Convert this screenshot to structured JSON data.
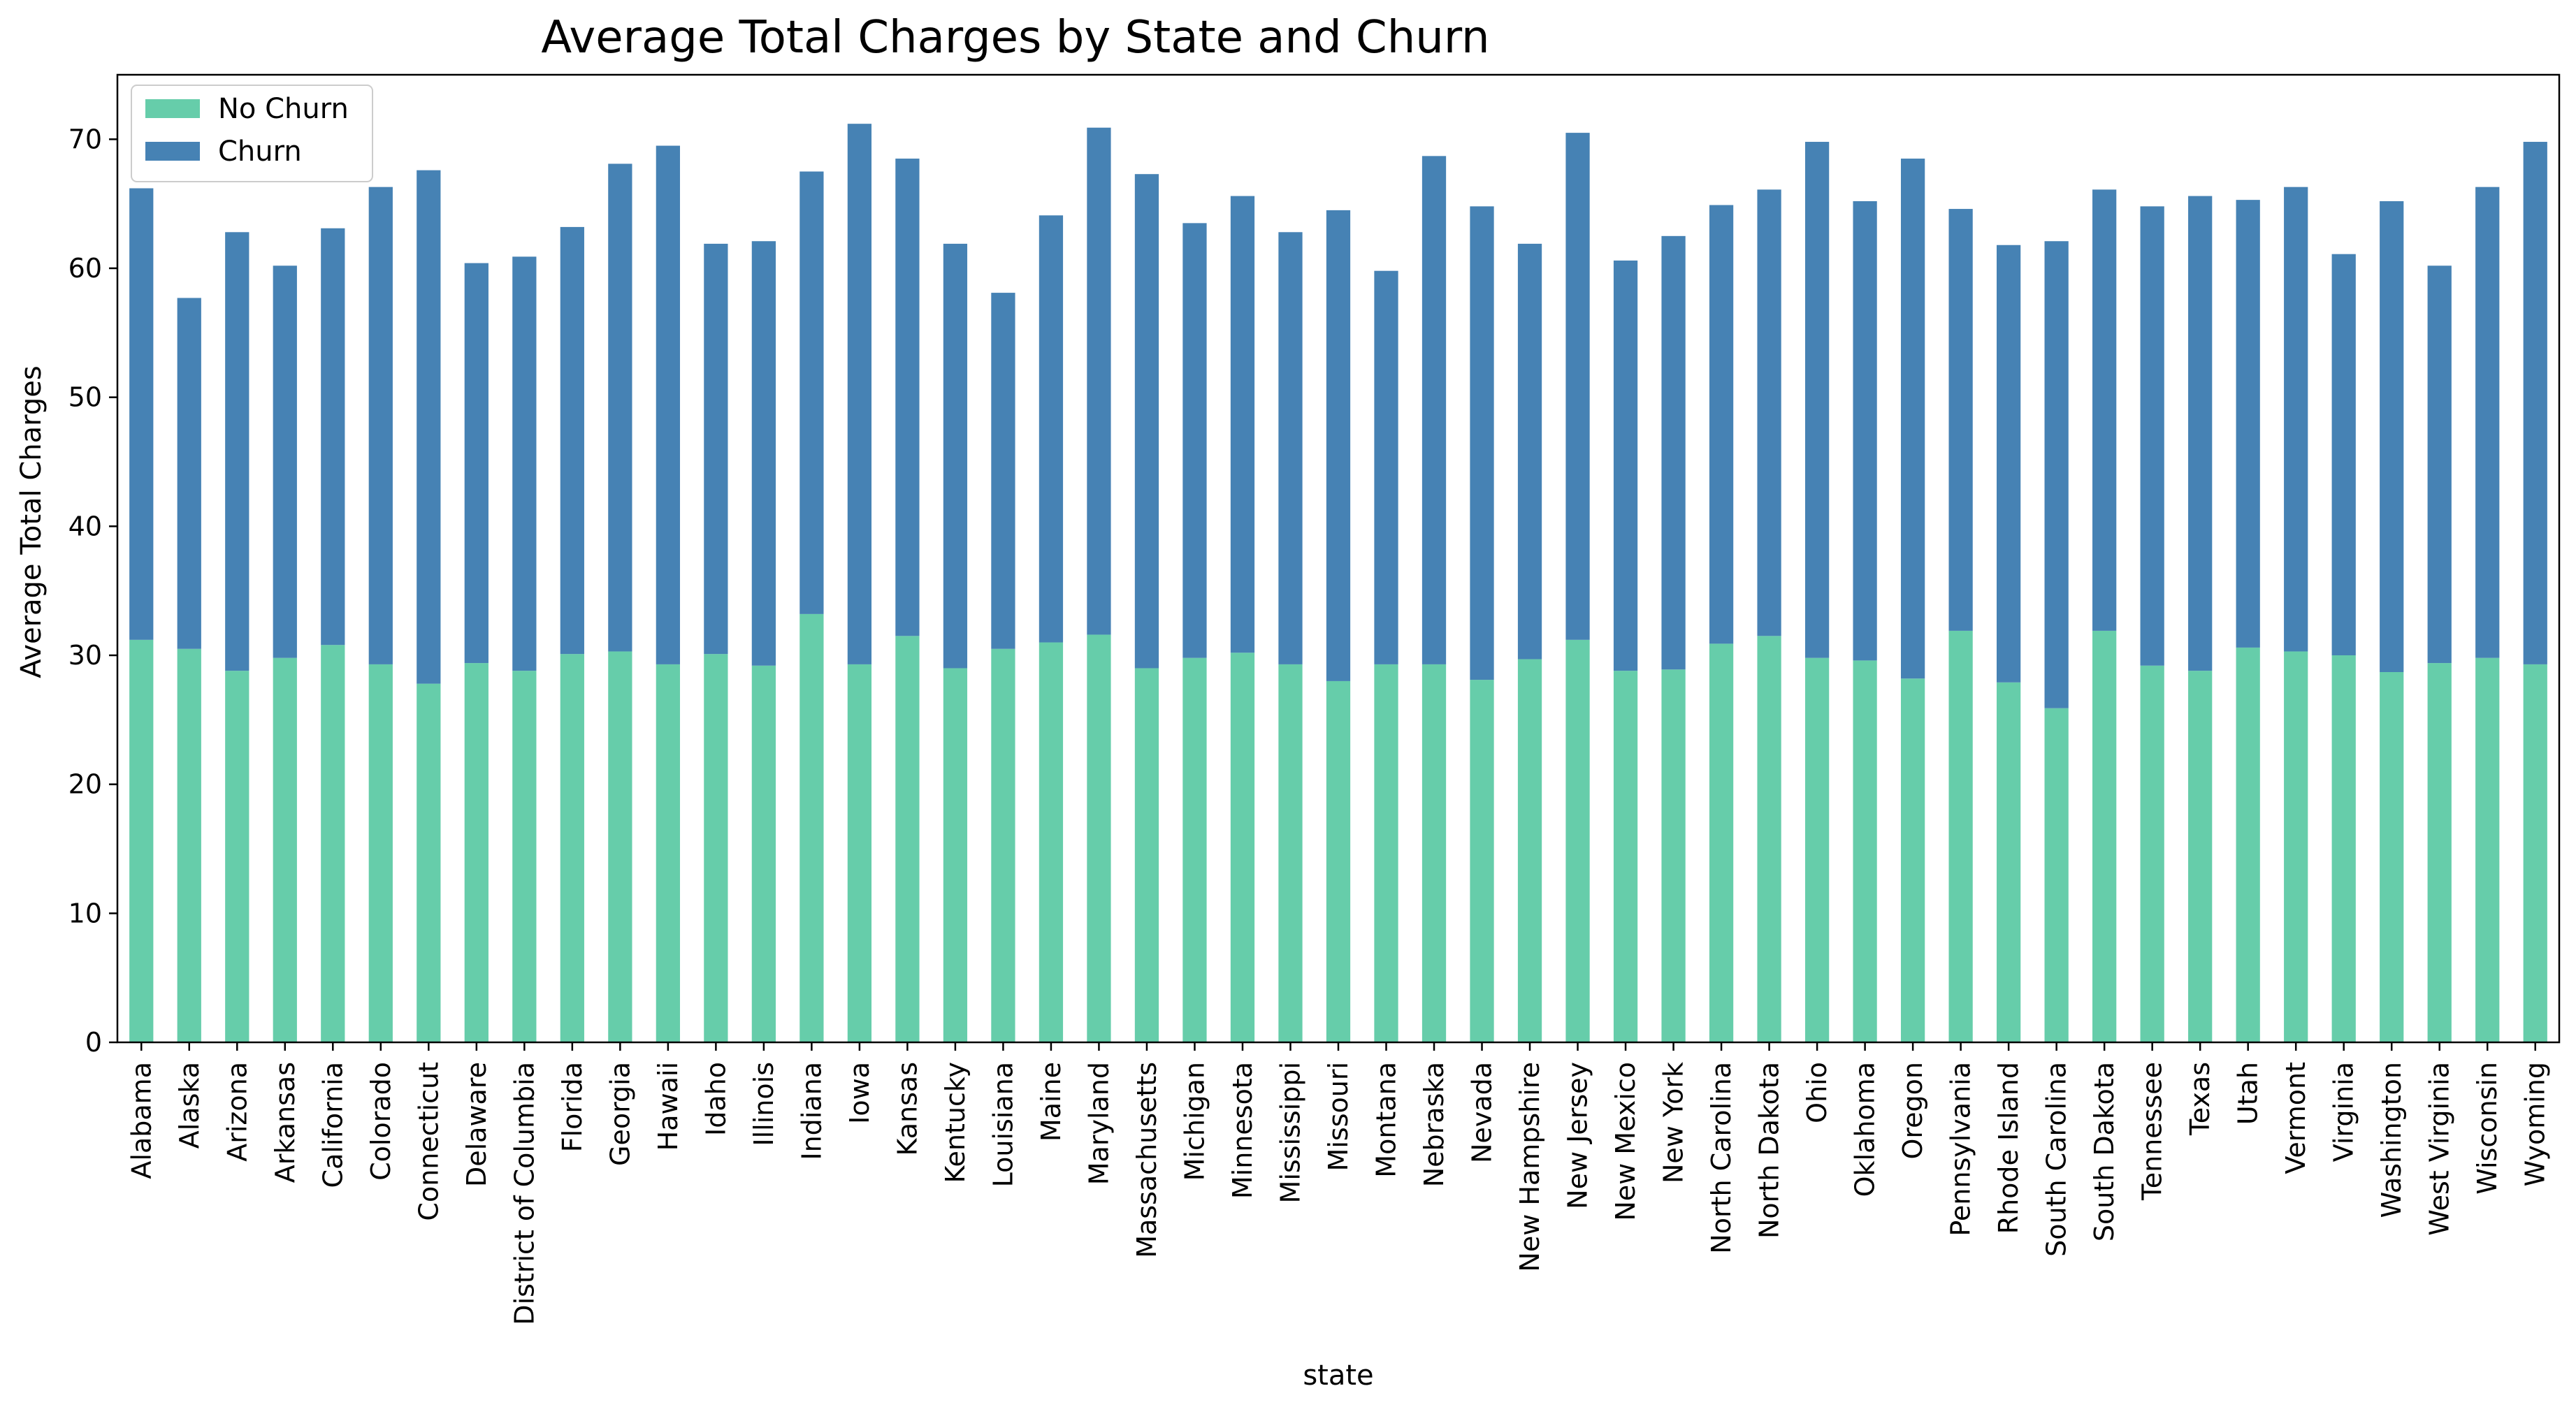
{
  "chart_data": {
    "type": "bar",
    "stacked": true,
    "title": "Average Total Charges by State and Churn",
    "xlabel": "state",
    "ylabel": "Average Total Charges",
    "ylim": [
      0,
      75
    ],
    "yticks": [
      0,
      10,
      20,
      30,
      40,
      50,
      60,
      70
    ],
    "grid": false,
    "legend_position": "top-left",
    "colors": {
      "No Churn": "#66cdaa",
      "Churn": "#4682b4"
    },
    "categories": [
      "Alabama",
      "Alaska",
      "Arizona",
      "Arkansas",
      "California",
      "Colorado",
      "Connecticut",
      "Delaware",
      "District of Columbia",
      "Florida",
      "Georgia",
      "Hawaii",
      "Idaho",
      "Illinois",
      "Indiana",
      "Iowa",
      "Kansas",
      "Kentucky",
      "Louisiana",
      "Maine",
      "Maryland",
      "Massachusetts",
      "Michigan",
      "Minnesota",
      "Mississippi",
      "Missouri",
      "Montana",
      "Nebraska",
      "Nevada",
      "New Hampshire",
      "New Jersey",
      "New Mexico",
      "New York",
      "North Carolina",
      "North Dakota",
      "Ohio",
      "Oklahoma",
      "Oregon",
      "Pennsylvania",
      "Rhode Island",
      "South Carolina",
      "South Dakota",
      "Tennessee",
      "Texas",
      "Utah",
      "Vermont",
      "Virginia",
      "Washington",
      "West Virginia",
      "Wisconsin",
      "Wyoming"
    ],
    "series": [
      {
        "name": "No Churn",
        "values": [
          31.2,
          30.5,
          28.8,
          29.8,
          30.8,
          29.3,
          27.8,
          29.4,
          28.8,
          30.1,
          30.3,
          29.3,
          30.1,
          29.2,
          33.2,
          29.3,
          31.5,
          29.0,
          30.5,
          31.0,
          31.6,
          29.0,
          29.8,
          30.2,
          29.3,
          28.0,
          29.3,
          29.3,
          28.1,
          29.7,
          31.2,
          28.8,
          28.9,
          30.9,
          31.5,
          29.8,
          29.6,
          28.2,
          31.9,
          27.9,
          25.9,
          31.9,
          29.2,
          28.8,
          30.6,
          30.3,
          30.0,
          28.7,
          29.4,
          29.8,
          29.3
        ]
      },
      {
        "name": "Churn",
        "values": [
          35.0,
          27.2,
          34.0,
          30.4,
          32.3,
          37.0,
          39.8,
          31.0,
          32.1,
          33.1,
          37.8,
          40.2,
          31.8,
          32.9,
          34.3,
          41.9,
          37.0,
          32.9,
          27.6,
          33.1,
          39.3,
          38.3,
          33.7,
          35.4,
          33.5,
          36.5,
          30.5,
          39.4,
          36.7,
          32.2,
          39.3,
          31.8,
          33.6,
          34.0,
          34.6,
          40.0,
          35.6,
          40.3,
          32.7,
          33.9,
          36.2,
          34.2,
          35.6,
          36.8,
          34.7,
          36.0,
          31.1,
          36.5,
          30.8,
          36.5,
          40.5
        ]
      }
    ]
  }
}
